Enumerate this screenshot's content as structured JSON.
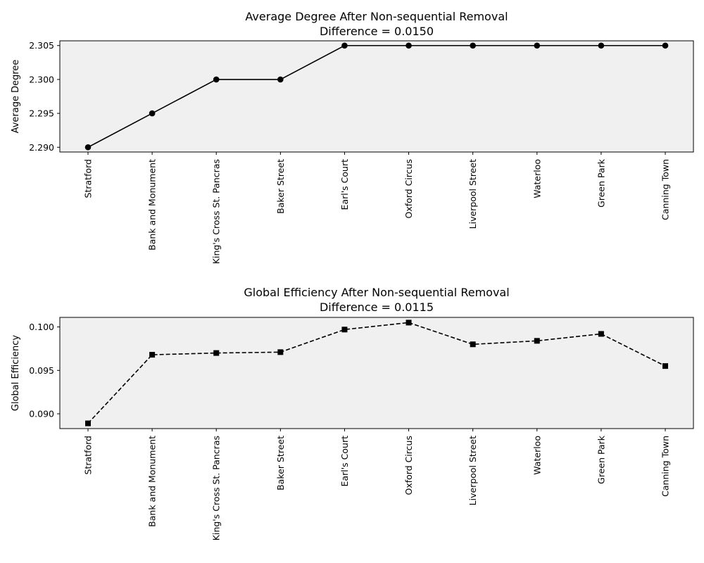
{
  "chart_data": [
    {
      "type": "line",
      "title": "Average Degree After Non-sequential Removal",
      "subtitle": "Difference = 0.0150",
      "xlabel": "",
      "ylabel": "Average Degree",
      "categories": [
        "Stratford",
        "Bank and Monument",
        "King's Cross St. Pancras",
        "Baker Street",
        "Earl's Court",
        "Oxford Circus",
        "Liverpool Street",
        "Waterloo",
        "Green Park",
        "Canning Town"
      ],
      "series": [
        {
          "values": [
            2.29,
            2.295,
            2.3,
            2.3,
            2.305,
            2.305,
            2.305,
            2.305,
            2.305,
            2.305
          ],
          "marker": "circle",
          "line_style": "solid",
          "color": "#000000"
        }
      ],
      "ylim": [
        2.2893,
        2.3057
      ],
      "yticks": [
        2.29,
        2.295,
        2.3,
        2.305
      ],
      "ytick_labels": [
        "2.290",
        "2.295",
        "2.300",
        "2.305"
      ],
      "background": "#f0f0f0",
      "grid": false
    },
    {
      "type": "line",
      "title": "Global Efficiency After Non-sequential Removal",
      "subtitle": "Difference = 0.0115",
      "xlabel": "",
      "ylabel": "Global Efficiency",
      "categories": [
        "Stratford",
        "Bank and Monument",
        "King's Cross St. Pancras",
        "Baker Street",
        "Earl's Court",
        "Oxford Circus",
        "Liverpool Street",
        "Waterloo",
        "Green Park",
        "Canning Town"
      ],
      "series": [
        {
          "values": [
            0.0889,
            0.0968,
            0.097,
            0.0971,
            0.0997,
            0.1005,
            0.098,
            0.0984,
            0.0992,
            0.0955
          ],
          "marker": "square",
          "line_style": "dashed",
          "color": "#000000"
        }
      ],
      "ylim": [
        0.0883,
        0.1011
      ],
      "yticks": [
        0.09,
        0.095,
        0.1
      ],
      "ytick_labels": [
        "0.090",
        "0.095",
        "0.100"
      ],
      "background": "#f0f0f0",
      "grid": false
    }
  ]
}
